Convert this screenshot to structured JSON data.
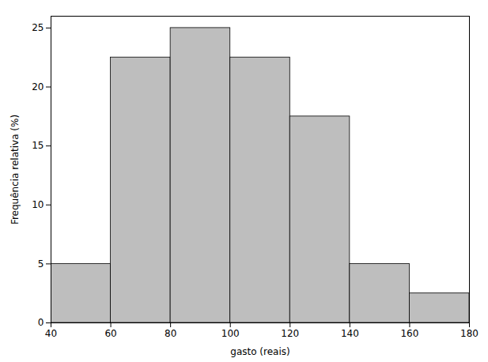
{
  "chart_data": {
    "type": "histogram",
    "xlabel": "gasto (reais)",
    "ylabel": "Frequência relativa (%)",
    "bins": [
      40,
      60,
      80,
      100,
      120,
      140,
      160,
      180
    ],
    "values": [
      5,
      22.5,
      25,
      22.5,
      17.5,
      5,
      2.5
    ],
    "color": "#bebebe",
    "xlim": [
      40,
      180
    ],
    "ylim": [
      0,
      26
    ],
    "xticks": [
      40,
      60,
      80,
      100,
      120,
      140,
      160,
      180
    ],
    "yticks": [
      0,
      5,
      10,
      15,
      20,
      25
    ],
    "grid": false
  }
}
